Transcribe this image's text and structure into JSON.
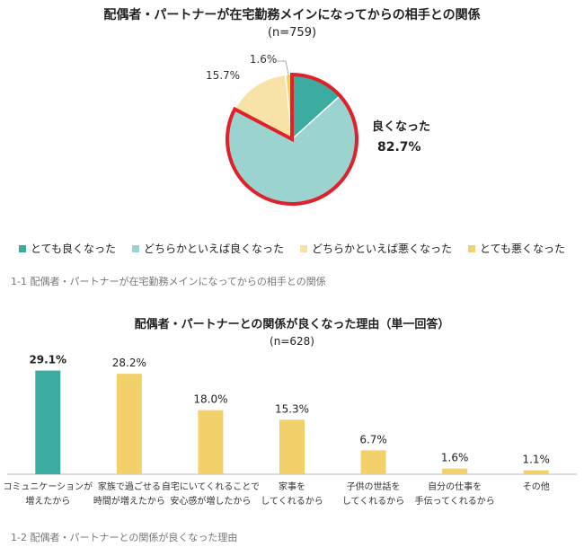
{
  "chart_data": [
    {
      "type": "pie",
      "title": "配偶者・パートナーが在宅勤務メインになってからの相手との関係",
      "n_label": "(n=759)",
      "categories": [
        "とても良くなった",
        "どちらかといえば良くなった",
        "どちらかといえば悪くなった",
        "とても悪くなった"
      ],
      "values": [
        13.3,
        69.4,
        15.7,
        1.6
      ],
      "labels": [
        "",
        "",
        "15.7%",
        "1.6%"
      ],
      "colors": [
        "#3aada0",
        "#9bd3cf",
        "#f7e3a8",
        "#f2d06a"
      ],
      "highlight_label": "良くなった",
      "highlight_value": "82.7%",
      "highlight_color": "#e0202a",
      "caption": "1-1 配偶者・パートナーが在宅勤務メインになってからの相手との関係"
    },
    {
      "type": "bar",
      "title": "配偶者・パートナーとの関係が良くなった理由（単一回答）",
      "n_label": "(n=628)",
      "categories": [
        [
          "コミュニケーションが",
          "増えたから"
        ],
        [
          "家族で過ごせる",
          "時間が増えたから"
        ],
        [
          "自宅にいてくれることで",
          "安心感が増したから"
        ],
        [
          "家事を",
          "してくれるから"
        ],
        [
          "子供の世話を",
          "してくれるから"
        ],
        [
          "自分の仕事を",
          "手伝ってくれるから"
        ],
        [
          "その他"
        ]
      ],
      "values": [
        29.1,
        28.2,
        18.0,
        15.3,
        6.7,
        1.6,
        1.1
      ],
      "value_labels": [
        "29.1%",
        "28.2%",
        "18.0%",
        "15.3%",
        "6.7%",
        "1.6%",
        "1.1%"
      ],
      "bar_colors": [
        "#3aada0",
        "#f2d06a",
        "#f2d06a",
        "#f2d06a",
        "#f2d06a",
        "#f2d06a",
        "#f2d06a"
      ],
      "ylim": [
        0,
        30
      ],
      "caption": "1-2 配偶者・パートナーとの関係が良くなった理由"
    }
  ]
}
